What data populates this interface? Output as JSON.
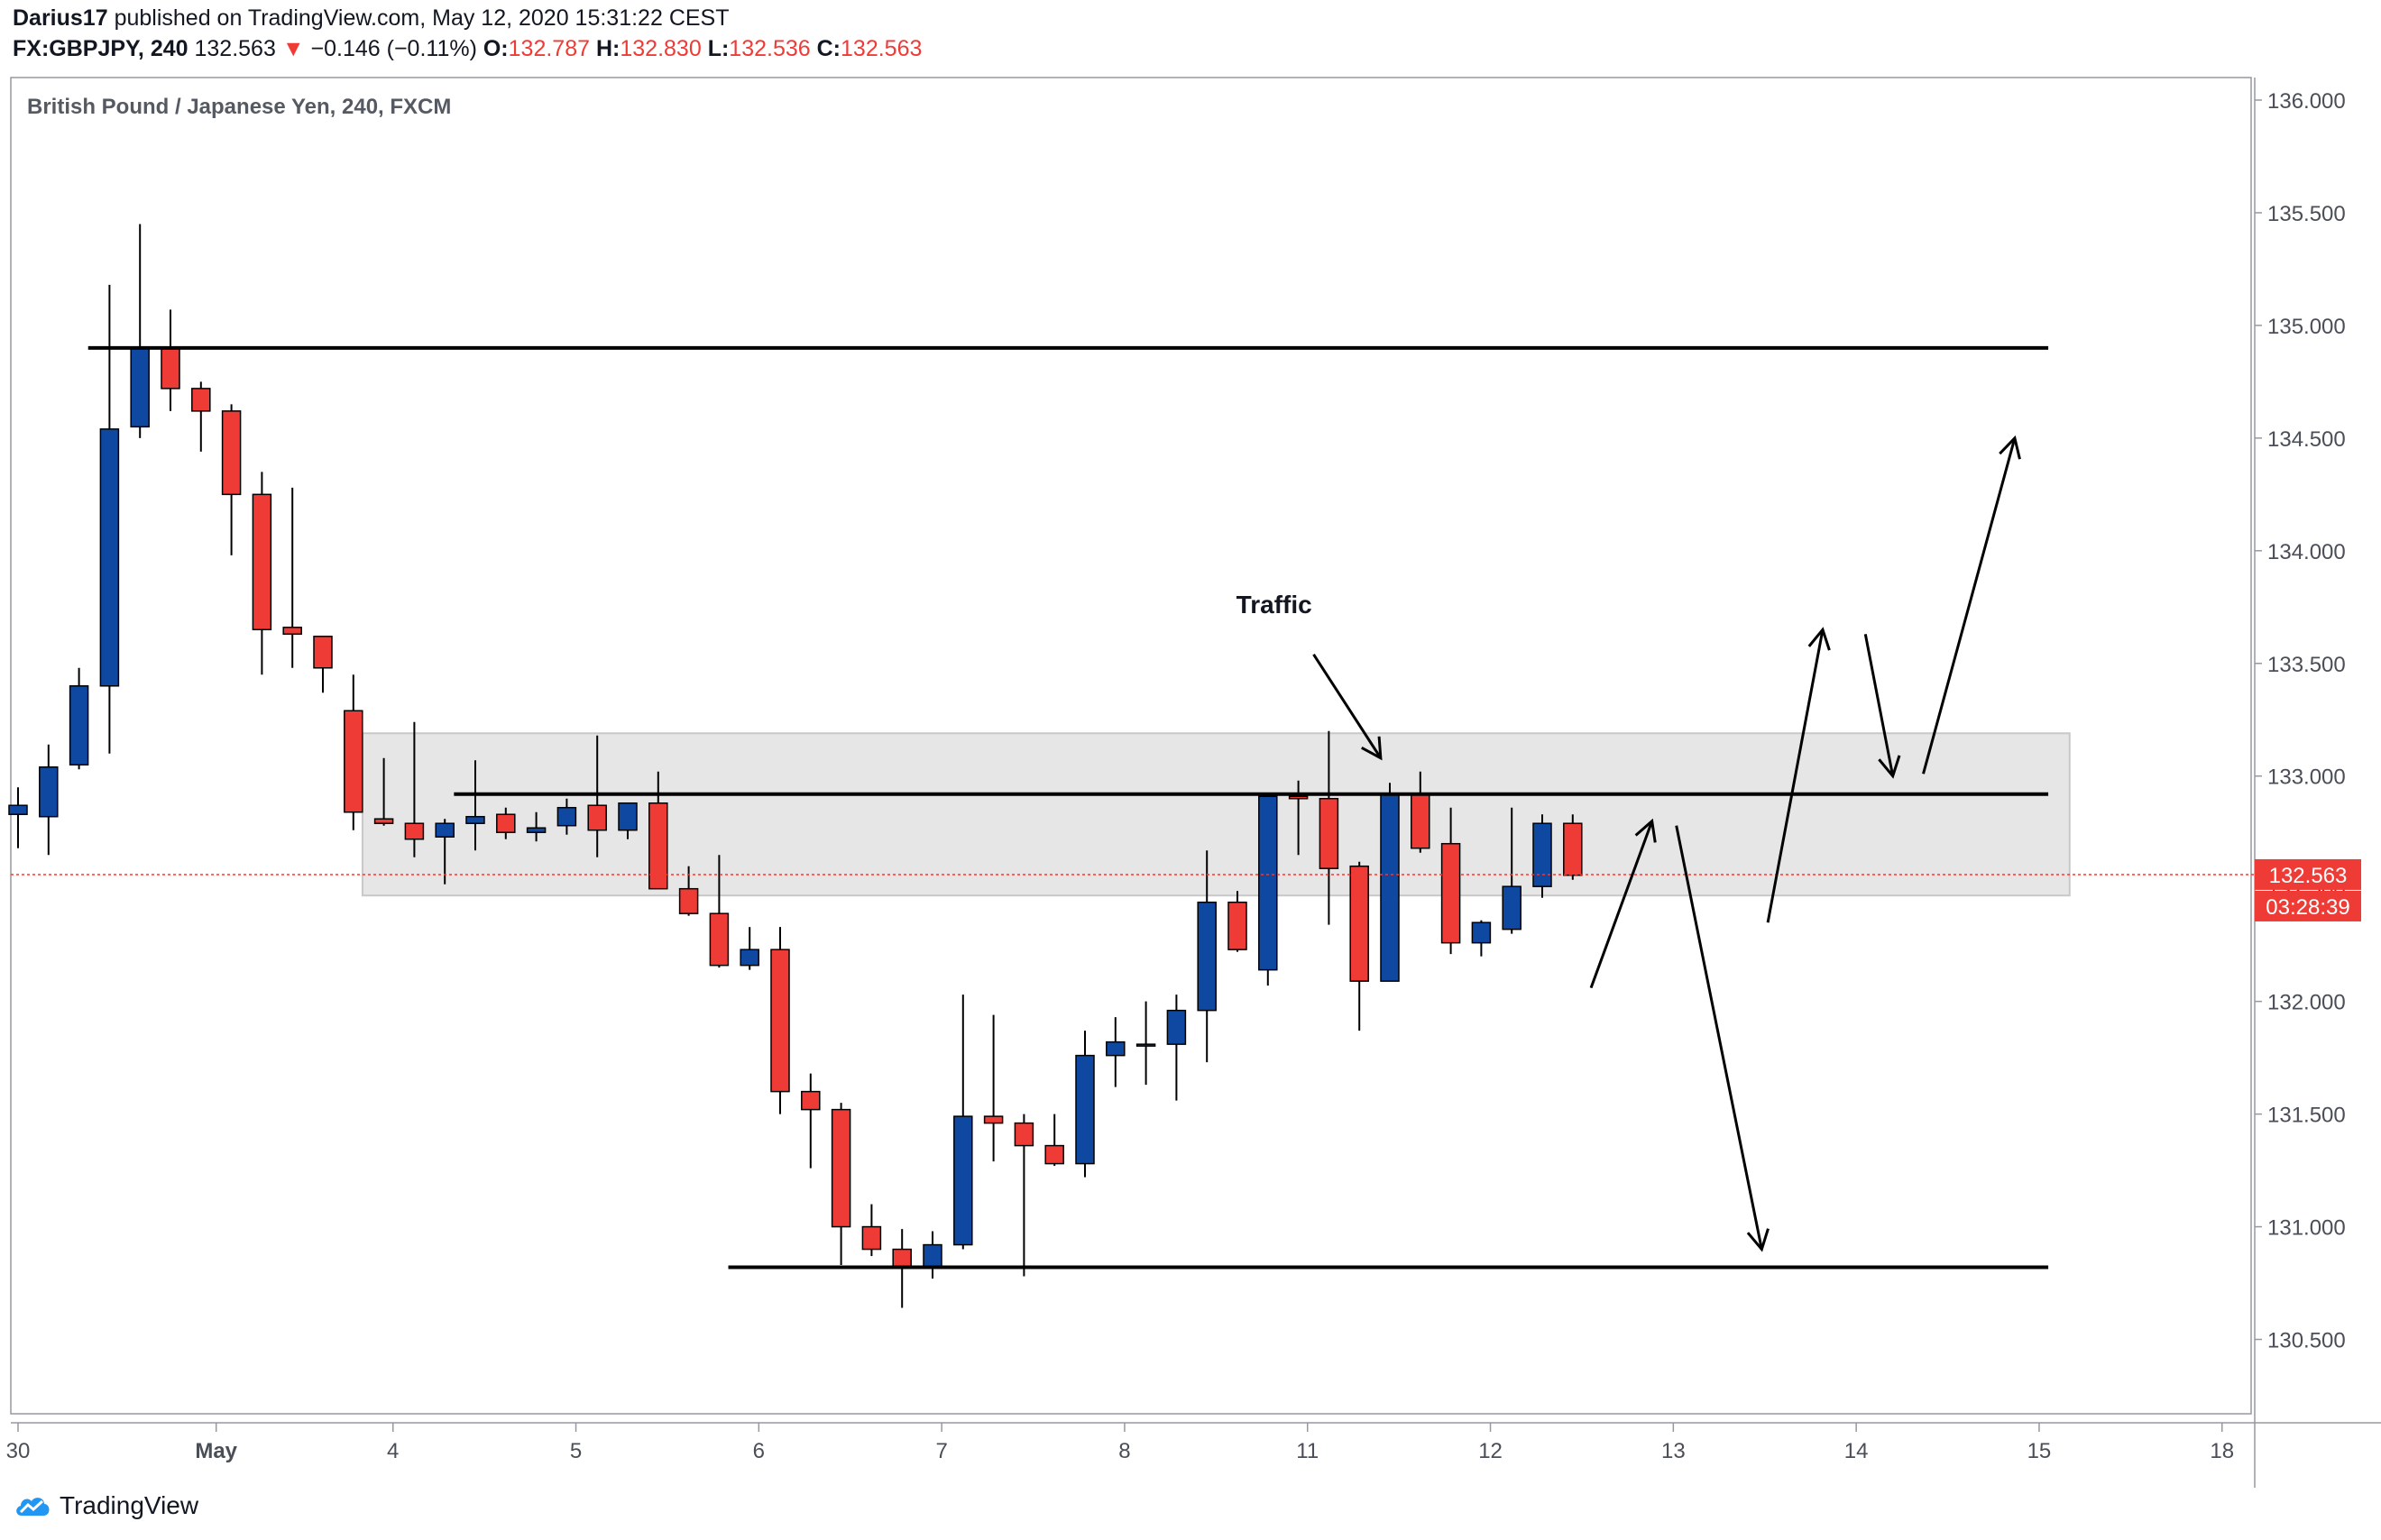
{
  "header": {
    "publisher": "Darius17",
    "published_text": "published on TradingView.com, May 12, 2020 15:31:22 CEST",
    "symbol": "FX:GBPJPY, 240",
    "last": "132.563",
    "change_arrow": "▼",
    "change": "−0.146 (−0.11%)",
    "open_label": "O:",
    "open": "132.787",
    "high_label": "H:",
    "high": "132.830",
    "low_label": "L:",
    "low": "132.536",
    "close_label": "C:",
    "close": "132.563"
  },
  "footer": {
    "brand": "TradingView",
    "logo_icon": "tradingview-cloud-icon"
  },
  "colors": {
    "up": "#0f48a0",
    "down": "#ef3b36",
    "grid_zone": "#e6e6e6",
    "price_tag": "#ef3b36"
  },
  "chart_data": {
    "type": "candlestick",
    "title": "British Pound / Japanese Yen, 240, FXCM",
    "ylim": [
      130.17,
      136.1
    ],
    "y_ticks": [
      "136.000",
      "135.500",
      "135.000",
      "134.500",
      "134.000",
      "133.500",
      "133.000",
      "132.500",
      "132.000",
      "131.500",
      "131.000",
      "130.500"
    ],
    "y_tick_values": [
      136.0,
      135.5,
      135.0,
      134.5,
      134.0,
      133.5,
      133.0,
      132.5,
      132.0,
      131.5,
      131.0,
      130.5
    ],
    "x_ticks": [
      {
        "label": "30",
        "i": 0
      },
      {
        "label": "May",
        "i": 6.5
      },
      {
        "label": "4",
        "i": 12.3
      },
      {
        "label": "5",
        "i": 18.3
      },
      {
        "label": "6",
        "i": 24.3
      },
      {
        "label": "7",
        "i": 30.3
      },
      {
        "label": "8",
        "i": 36.3
      },
      {
        "label": "11",
        "i": 42.3
      },
      {
        "label": "12",
        "i": 48.3
      },
      {
        "label": "13",
        "i": 54.3
      },
      {
        "label": "14",
        "i": 60.3
      },
      {
        "label": "15",
        "i": 66.3
      },
      {
        "label": "18",
        "i": 72.3
      }
    ],
    "last_price": "132.563",
    "last_price_value": 132.563,
    "countdown": "03:28:39",
    "candles": [
      {
        "o": 132.83,
        "h": 132.95,
        "l": 132.68,
        "c": 132.87
      },
      {
        "o": 132.82,
        "h": 133.14,
        "l": 132.65,
        "c": 133.04
      },
      {
        "o": 133.05,
        "h": 133.48,
        "l": 133.03,
        "c": 133.4
      },
      {
        "o": 133.4,
        "h": 135.18,
        "l": 133.1,
        "c": 134.54
      },
      {
        "o": 134.55,
        "h": 135.45,
        "l": 134.5,
        "c": 134.9
      },
      {
        "o": 134.9,
        "h": 135.07,
        "l": 134.62,
        "c": 134.72
      },
      {
        "o": 134.72,
        "h": 134.75,
        "l": 134.44,
        "c": 134.62
      },
      {
        "o": 134.62,
        "h": 134.65,
        "l": 133.98,
        "c": 134.25
      },
      {
        "o": 134.25,
        "h": 134.35,
        "l": 133.45,
        "c": 133.65
      },
      {
        "o": 133.66,
        "h": 134.28,
        "l": 133.48,
        "c": 133.63
      },
      {
        "o": 133.62,
        "h": 133.62,
        "l": 133.37,
        "c": 133.48
      },
      {
        "o": 133.29,
        "h": 133.45,
        "l": 132.76,
        "c": 132.84
      },
      {
        "o": 132.81,
        "h": 133.08,
        "l": 132.78,
        "c": 132.79
      },
      {
        "o": 132.79,
        "h": 133.24,
        "l": 132.64,
        "c": 132.72
      },
      {
        "o": 132.73,
        "h": 132.81,
        "l": 132.52,
        "c": 132.79
      },
      {
        "o": 132.79,
        "h": 133.07,
        "l": 132.67,
        "c": 132.82
      },
      {
        "o": 132.83,
        "h": 132.86,
        "l": 132.72,
        "c": 132.75
      },
      {
        "o": 132.75,
        "h": 132.84,
        "l": 132.71,
        "c": 132.77
      },
      {
        "o": 132.78,
        "h": 132.9,
        "l": 132.74,
        "c": 132.86
      },
      {
        "o": 132.87,
        "h": 133.18,
        "l": 132.64,
        "c": 132.76
      },
      {
        "o": 132.76,
        "h": 132.88,
        "l": 132.72,
        "c": 132.88
      },
      {
        "o": 132.88,
        "h": 133.02,
        "l": 132.5,
        "c": 132.5
      },
      {
        "o": 132.5,
        "h": 132.6,
        "l": 132.38,
        "c": 132.39
      },
      {
        "o": 132.39,
        "h": 132.65,
        "l": 132.15,
        "c": 132.16
      },
      {
        "o": 132.16,
        "h": 132.33,
        "l": 132.14,
        "c": 132.23
      },
      {
        "o": 132.23,
        "h": 132.33,
        "l": 131.5,
        "c": 131.6
      },
      {
        "o": 131.6,
        "h": 131.68,
        "l": 131.26,
        "c": 131.52
      },
      {
        "o": 131.52,
        "h": 131.55,
        "l": 130.83,
        "c": 131.0
      },
      {
        "o": 131.0,
        "h": 131.1,
        "l": 130.87,
        "c": 130.9
      },
      {
        "o": 130.9,
        "h": 130.99,
        "l": 130.64,
        "c": 130.82
      },
      {
        "o": 130.82,
        "h": 130.98,
        "l": 130.77,
        "c": 130.92
      },
      {
        "o": 130.92,
        "h": 132.03,
        "l": 130.9,
        "c": 131.49
      },
      {
        "o": 131.49,
        "h": 131.94,
        "l": 131.29,
        "c": 131.46
      },
      {
        "o": 131.46,
        "h": 131.5,
        "l": 130.78,
        "c": 131.36
      },
      {
        "o": 131.36,
        "h": 131.5,
        "l": 131.27,
        "c": 131.28
      },
      {
        "o": 131.28,
        "h": 131.87,
        "l": 131.22,
        "c": 131.76
      },
      {
        "o": 131.76,
        "h": 131.93,
        "l": 131.62,
        "c": 131.82
      },
      {
        "o": 131.81,
        "h": 132.0,
        "l": 131.63,
        "c": 131.81
      },
      {
        "o": 131.81,
        "h": 132.03,
        "l": 131.56,
        "c": 131.96
      },
      {
        "o": 131.96,
        "h": 132.67,
        "l": 131.73,
        "c": 132.44
      },
      {
        "o": 132.44,
        "h": 132.49,
        "l": 132.22,
        "c": 132.23
      },
      {
        "o": 132.14,
        "h": 132.92,
        "l": 132.07,
        "c": 132.91
      },
      {
        "o": 132.91,
        "h": 132.98,
        "l": 132.65,
        "c": 132.9
      },
      {
        "o": 132.9,
        "h": 133.2,
        "l": 132.34,
        "c": 132.59
      },
      {
        "o": 132.6,
        "h": 132.62,
        "l": 131.87,
        "c": 132.09
      },
      {
        "o": 132.09,
        "h": 132.97,
        "l": 132.09,
        "c": 132.92
      },
      {
        "o": 132.92,
        "h": 133.02,
        "l": 132.66,
        "c": 132.68
      },
      {
        "o": 132.7,
        "h": 132.86,
        "l": 132.21,
        "c": 132.26
      },
      {
        "o": 132.26,
        "h": 132.36,
        "l": 132.2,
        "c": 132.35
      },
      {
        "o": 132.32,
        "h": 132.86,
        "l": 132.3,
        "c": 132.51
      },
      {
        "o": 132.51,
        "h": 132.83,
        "l": 132.46,
        "c": 132.79
      },
      {
        "o": 132.79,
        "h": 132.83,
        "l": 132.54,
        "c": 132.56
      }
    ],
    "annotations": {
      "label": "Traffic",
      "zone": {
        "i1": 11.3,
        "i2": 67.3,
        "top": 133.19,
        "bottom": 132.47
      },
      "lines": [
        {
          "name": "resistance-line",
          "i1": 2.3,
          "i2": 66.6,
          "price": 134.9
        },
        {
          "name": "zone-line",
          "i1": 14.3,
          "i2": 66.6,
          "price": 132.92
        },
        {
          "name": "support-line",
          "i1": 23.3,
          "i2": 66.6,
          "price": 130.82
        }
      ],
      "arrows": [
        {
          "name": "traffic-arrow",
          "from": [
            42.5,
            133.54
          ],
          "to": [
            44.7,
            133.08
          ]
        },
        {
          "name": "bounce-up-arrow",
          "from": [
            51.6,
            132.06
          ],
          "to": [
            53.6,
            132.8
          ]
        },
        {
          "name": "drop-arrow",
          "from": [
            54.4,
            132.78
          ],
          "to": [
            57.2,
            130.9
          ]
        },
        {
          "name": "break-up-arrow",
          "from": [
            57.4,
            132.35
          ],
          "to": [
            59.2,
            133.65
          ]
        },
        {
          "name": "retest-arrow",
          "from": [
            60.6,
            133.63
          ],
          "to": [
            61.5,
            133.0
          ]
        },
        {
          "name": "target-arrow",
          "from": [
            62.5,
            133.01
          ],
          "to": [
            65.5,
            134.5
          ]
        }
      ]
    }
  }
}
